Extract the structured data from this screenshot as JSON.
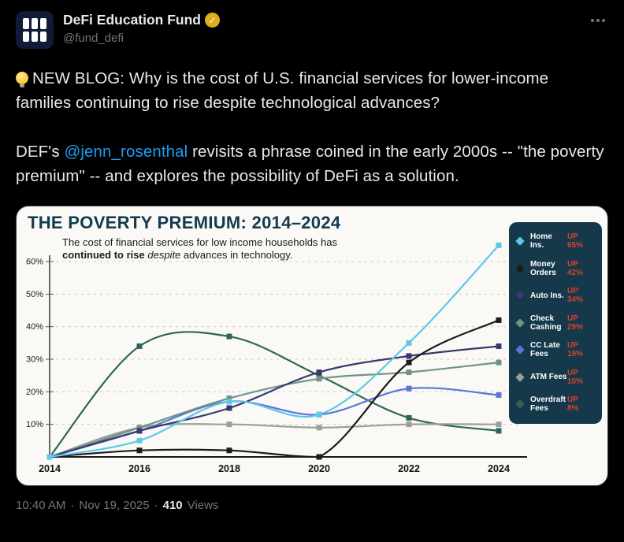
{
  "tweet": {
    "author": {
      "name": "DeFi Education Fund",
      "handle": "@fund_defi",
      "verified_badge": "gold-check"
    },
    "body": {
      "p1_emoji": "💡",
      "p1_text": "NEW BLOG: Why is the cost of U.S. financial services for lower-income families continuing to rise despite technological advances?",
      "p2_prefix": "DEF's ",
      "p2_mention": "@jenn_rosenthal",
      "p2_suffix": " revisits a phrase coined in the early 2000s -- \"the poverty premium\" -- and explores the possibility of DeFi as a solution."
    },
    "footer": {
      "time": "10:40 AM",
      "sep1": "·",
      "date": "Nov 19, 2025",
      "sep2": "·",
      "views_count": "410",
      "views_label": "Views"
    }
  },
  "colors": {
    "background": "#000000",
    "text_primary": "#e7e9ea",
    "text_muted": "#71767b",
    "link_blue": "#1d9bf0",
    "badge_gold": "#dfae1d",
    "legend_bg": "#15394a",
    "legend_up_red": "#d8402f",
    "chart_bg": "#faf9f5",
    "chart_title": "#123a50"
  },
  "chart_data": {
    "type": "line",
    "title": "THE POVERTY PREMIUM: 2014–2024",
    "subtitle_parts": {
      "p1": "The cost of financial services for low income households has ",
      "bold": "continued to rise",
      "p2": " ",
      "italic": "despite",
      "p3": " advances in technology."
    },
    "x": [
      2014,
      2016,
      2018,
      2020,
      2022,
      2024
    ],
    "x_tick_labels": [
      "2014",
      "2016",
      "2018",
      "2020",
      "2022",
      "2024"
    ],
    "y_ticks": [
      10,
      20,
      30,
      40,
      50,
      60
    ],
    "y_tick_labels": [
      "10%",
      "20%",
      "30%",
      "40%",
      "50%",
      "60%"
    ],
    "ylim": [
      0,
      66
    ],
    "grid": "dashed-horizontal",
    "legend_position": "right",
    "legend_up_label": "UP",
    "series": [
      {
        "name": "Home Ins.",
        "up": "65%",
        "color": "#5ec8e8",
        "values": [
          0,
          5,
          17,
          13,
          35,
          65
        ]
      },
      {
        "name": "Money Orders",
        "up": "42%",
        "color": "#1b1b1b",
        "values": [
          0,
          2,
          2,
          0,
          29,
          42
        ]
      },
      {
        "name": "Auto Ins.",
        "up": "34%",
        "color": "#373a6d",
        "values": [
          0,
          8,
          15,
          26,
          31,
          34
        ]
      },
      {
        "name": "Check Cashing",
        "up": "29%",
        "color": "#6d9487",
        "values": [
          0,
          9,
          18,
          24,
          26,
          29
        ]
      },
      {
        "name": "CC Late Fees",
        "up": "19%",
        "color": "#5b76d8",
        "values": [
          0,
          8,
          17,
          13,
          21,
          19
        ]
      },
      {
        "name": "ATM Fees",
        "up": "10%",
        "color": "#9d9d99",
        "values": [
          0,
          9,
          10,
          9,
          10,
          10
        ]
      },
      {
        "name": "Overdraft Fees",
        "up": "8%",
        "color": "#2f6458",
        "values": [
          0,
          34,
          37,
          25,
          12,
          8
        ]
      }
    ]
  }
}
